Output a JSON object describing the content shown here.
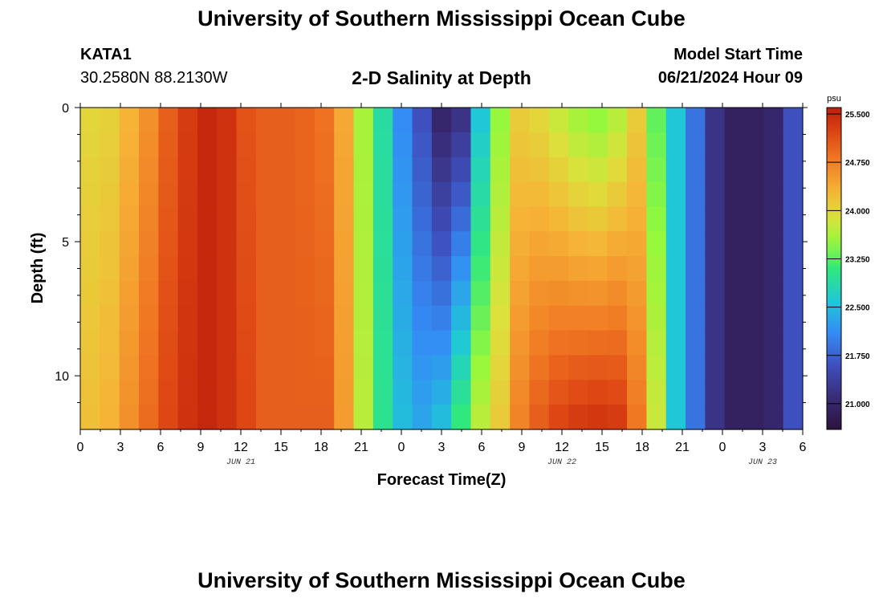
{
  "header": {
    "title": "University of Southern Mississippi Ocean Cube",
    "station_id": "KATA1",
    "coordinates": "30.2580N  88.2130W",
    "subtitle": "2-D Salinity at Depth",
    "model_start_label": "Model Start Time",
    "model_start_value": "06/21/2024 Hour 09"
  },
  "footer": {
    "title": "University of Southern Mississippi Ocean Cube"
  },
  "chart_data": {
    "type": "heatmap",
    "title": "2-D Salinity at Depth",
    "xlabel": "Forecast Time(Z)",
    "ylabel": "Depth (ft)",
    "x_tick_labels": [
      "0",
      "3",
      "6",
      "9",
      "12",
      "15",
      "18",
      "21",
      "0",
      "3",
      "6",
      "9",
      "12",
      "15",
      "18",
      "21",
      "0",
      "3",
      "6"
    ],
    "x_tick_hours": [
      0,
      3,
      6,
      9,
      12,
      15,
      18,
      21,
      24,
      27,
      30,
      33,
      36,
      39,
      42,
      45,
      48,
      51,
      54
    ],
    "xlim": [
      0,
      54
    ],
    "ylim": [
      12,
      0
    ],
    "y_ticks": [
      0,
      5,
      10
    ],
    "y_tick_labels": [
      "0",
      "5",
      "10"
    ],
    "date_labels": [
      {
        "label": "JUN 21",
        "hour": 12
      },
      {
        "label": "JUN 22",
        "hour": 36
      },
      {
        "label": "JUN 23",
        "hour": 51
      }
    ],
    "colorbar": {
      "unit": "psu",
      "min": 20.6,
      "max": 25.6,
      "tick_values": [
        25.5,
        24.75,
        24.0,
        23.25,
        22.5,
        21.75,
        21.0
      ],
      "tick_labels": [
        "25.500",
        "24.750",
        "24.000",
        "23.250",
        "22.500",
        "21.750",
        "21.000"
      ]
    },
    "depth_levels_ft": [
      0,
      1,
      2,
      3,
      4,
      5,
      6,
      7,
      8,
      9,
      10,
      11,
      12
    ],
    "time_hours": [
      0,
      1.5,
      3,
      4.5,
      6,
      7.5,
      9,
      10.5,
      12,
      13.5,
      15,
      16.5,
      18,
      19.5,
      21,
      22.5,
      24,
      25.5,
      27,
      28.5,
      30,
      31.5,
      33,
      34.5,
      36,
      37.5,
      39,
      40.5,
      42,
      43.5,
      45,
      46.5,
      48,
      49.5,
      51,
      52.5,
      54
    ],
    "surface_salinity_psu": [
      24.0,
      24.05,
      24.3,
      24.6,
      25.0,
      25.3,
      25.5,
      25.4,
      25.1,
      25.0,
      25.0,
      24.95,
      24.85,
      24.4,
      23.6,
      22.9,
      22.1,
      21.6,
      21.0,
      21.2,
      22.6,
      23.5,
      24.1,
      24.0,
      23.8,
      23.6,
      23.5,
      23.7,
      24.1,
      23.3,
      22.6,
      21.9,
      21.2,
      20.9,
      20.9,
      21.0,
      21.6
    ],
    "bottom_salinity_psu": [
      24.2,
      24.3,
      24.6,
      24.9,
      25.2,
      25.4,
      25.5,
      25.4,
      25.2,
      25.0,
      25.0,
      25.0,
      25.0,
      24.5,
      23.7,
      23.0,
      22.5,
      22.3,
      22.5,
      23.1,
      23.7,
      24.1,
      24.7,
      25.0,
      25.2,
      25.3,
      25.35,
      25.3,
      24.8,
      23.8,
      22.6,
      21.9,
      21.2,
      20.9,
      20.9,
      21.0,
      21.6
    ],
    "series": [
      {
        "name": "depth 0 ft",
        "values": [
          24.0,
          24.05,
          24.3,
          24.6,
          25.0,
          25.3,
          25.5,
          25.4,
          25.1,
          25.0,
          25.0,
          24.95,
          24.85,
          24.4,
          23.6,
          22.9,
          22.1,
          21.6,
          21.0,
          21.2,
          22.6,
          23.5,
          24.1,
          24.0,
          23.8,
          23.6,
          23.5,
          23.7,
          24.1,
          23.3,
          22.6,
          21.9,
          21.2,
          20.9,
          20.9,
          21.0,
          21.6
        ]
      },
      {
        "name": "depth 12 ft",
        "values": [
          24.2,
          24.3,
          24.6,
          24.9,
          25.2,
          25.4,
          25.5,
          25.4,
          25.2,
          25.0,
          25.0,
          25.0,
          25.0,
          24.5,
          23.7,
          23.0,
          22.5,
          22.3,
          22.5,
          23.1,
          23.7,
          24.1,
          24.7,
          25.0,
          25.2,
          25.3,
          25.35,
          25.3,
          24.8,
          23.8,
          22.6,
          21.9,
          21.2,
          20.9,
          20.9,
          21.0,
          21.6
        ]
      }
    ],
    "grid": false
  }
}
